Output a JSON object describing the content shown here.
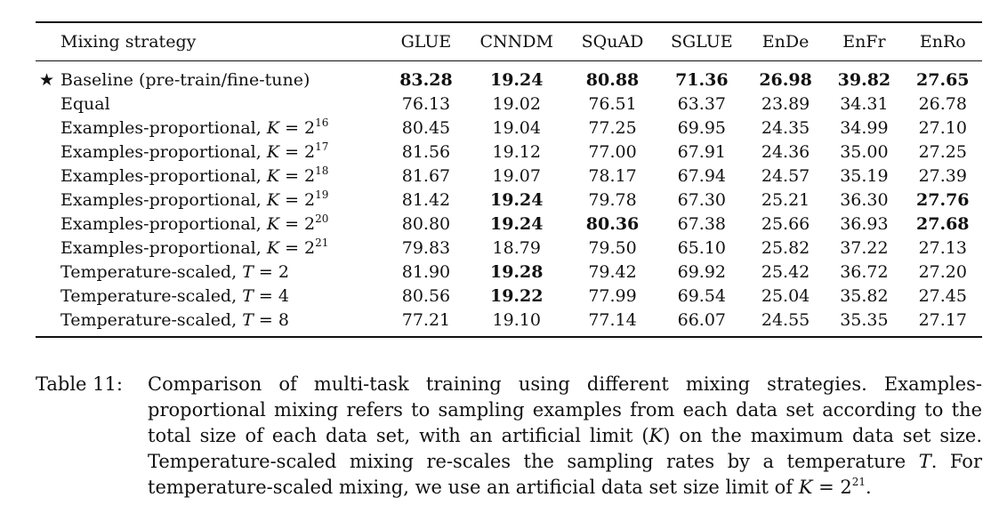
{
  "table": {
    "columns": [
      "Mixing strategy",
      "GLUE",
      "CNNDM",
      "SQuAD",
      "SGLUE",
      "EnDe",
      "EnFr",
      "EnRo"
    ],
    "baseline_marker": "★",
    "rows": [
      {
        "label": "Baseline (pre-train/fine-tune)",
        "baseline": true,
        "values": [
          "83.28",
          "19.24",
          "80.88",
          "71.36",
          "26.98",
          "39.82",
          "27.65"
        ],
        "bold": [
          true,
          true,
          true,
          true,
          true,
          true,
          true
        ]
      },
      {
        "label": "Equal",
        "values": [
          "76.13",
          "19.02",
          "76.51",
          "63.37",
          "23.89",
          "34.31",
          "26.78"
        ],
        "bold": [
          false,
          false,
          false,
          false,
          false,
          false,
          false
        ]
      },
      {
        "label": "Examples-proportional, ",
        "var": "K",
        "eq": " = 2",
        "exp": "16",
        "values": [
          "80.45",
          "19.04",
          "77.25",
          "69.95",
          "24.35",
          "34.99",
          "27.10"
        ],
        "bold": [
          false,
          false,
          false,
          false,
          false,
          false,
          false
        ]
      },
      {
        "label": "Examples-proportional, ",
        "var": "K",
        "eq": " = 2",
        "exp": "17",
        "values": [
          "81.56",
          "19.12",
          "77.00",
          "67.91",
          "24.36",
          "35.00",
          "27.25"
        ],
        "bold": [
          false,
          false,
          false,
          false,
          false,
          false,
          false
        ]
      },
      {
        "label": "Examples-proportional, ",
        "var": "K",
        "eq": " = 2",
        "exp": "18",
        "values": [
          "81.67",
          "19.07",
          "78.17",
          "67.94",
          "24.57",
          "35.19",
          "27.39"
        ],
        "bold": [
          false,
          false,
          false,
          false,
          false,
          false,
          false
        ]
      },
      {
        "label": "Examples-proportional, ",
        "var": "K",
        "eq": " = 2",
        "exp": "19",
        "values": [
          "81.42",
          "19.24",
          "79.78",
          "67.30",
          "25.21",
          "36.30",
          "27.76"
        ],
        "bold": [
          false,
          true,
          false,
          false,
          false,
          false,
          true
        ]
      },
      {
        "label": "Examples-proportional, ",
        "var": "K",
        "eq": " = 2",
        "exp": "20",
        "values": [
          "80.80",
          "19.24",
          "80.36",
          "67.38",
          "25.66",
          "36.93",
          "27.68"
        ],
        "bold": [
          false,
          true,
          true,
          false,
          false,
          false,
          true
        ]
      },
      {
        "label": "Examples-proportional, ",
        "var": "K",
        "eq": " = 2",
        "exp": "21",
        "values": [
          "79.83",
          "18.79",
          "79.50",
          "65.10",
          "25.82",
          "37.22",
          "27.13"
        ],
        "bold": [
          false,
          false,
          false,
          false,
          false,
          false,
          false
        ]
      },
      {
        "label": "Temperature-scaled, ",
        "var": "T",
        "eq": " = 2",
        "values": [
          "81.90",
          "19.28",
          "79.42",
          "69.92",
          "25.42",
          "36.72",
          "27.20"
        ],
        "bold": [
          false,
          true,
          false,
          false,
          false,
          false,
          false
        ]
      },
      {
        "label": "Temperature-scaled, ",
        "var": "T",
        "eq": " = 4",
        "values": [
          "80.56",
          "19.22",
          "77.99",
          "69.54",
          "25.04",
          "35.82",
          "27.45"
        ],
        "bold": [
          false,
          true,
          false,
          false,
          false,
          false,
          false
        ]
      },
      {
        "label": "Temperature-scaled, ",
        "var": "T",
        "eq": " = 8",
        "values": [
          "77.21",
          "19.10",
          "77.14",
          "66.07",
          "24.55",
          "35.35",
          "27.17"
        ],
        "bold": [
          false,
          false,
          false,
          false,
          false,
          false,
          false
        ]
      }
    ]
  },
  "caption": {
    "label": "Table 11:",
    "part1": "Comparison of multi-task training using different mixing strategies. Examples-proportional mixing refers to sampling examples from each data set according to the total size of each data set, with an artificial limit (",
    "var_k1": "K",
    "part2": ") on the maximum data set size. Temperature-scaled mixing re-scales the sampling rates by a temperature ",
    "var_t": "T",
    "part3": ". For temperature-scaled mixing, we use an artificial data set size limit of ",
    "var_k2": "K",
    "part4": " = 2",
    "exp": "21",
    "part5": "."
  }
}
